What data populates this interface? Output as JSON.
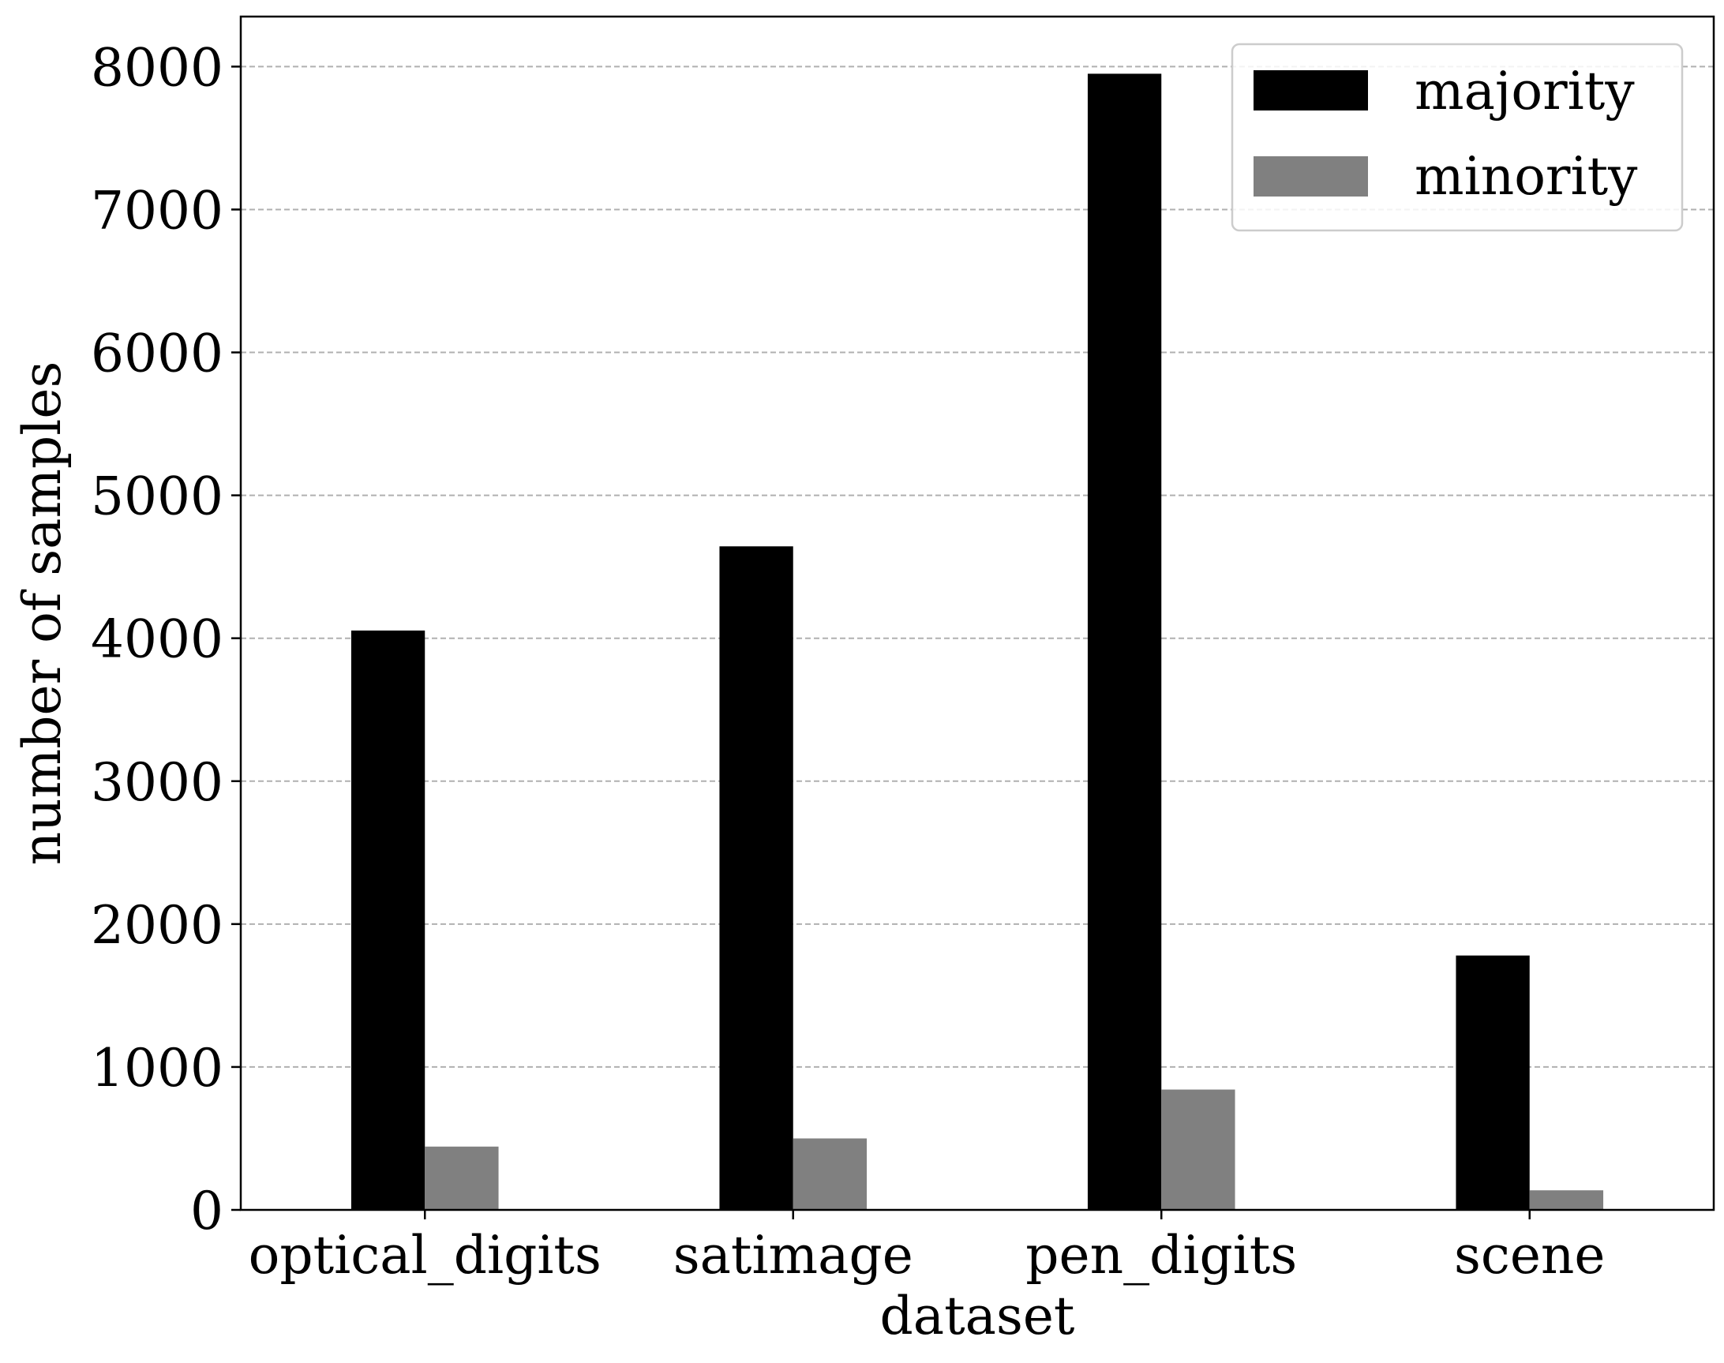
{
  "chart_data": {
    "type": "bar",
    "title": "",
    "xlabel": "dataset",
    "ylabel": "number of samples",
    "categories": [
      "optical_digits",
      "satimage",
      "pen_digits",
      "scene"
    ],
    "series": [
      {
        "name": "majority",
        "values": [
          4054,
          4643,
          7950,
          1780
        ],
        "color": "#000000"
      },
      {
        "name": "minority",
        "values": [
          443,
          500,
          842,
          137
        ],
        "color": "#808080"
      }
    ],
    "ylim": [
      0,
      8350
    ],
    "yticks": [
      0,
      1000,
      2000,
      3000,
      4000,
      5000,
      6000,
      7000,
      8000
    ],
    "grid": "y-dashed",
    "legend_position": "top-right"
  }
}
